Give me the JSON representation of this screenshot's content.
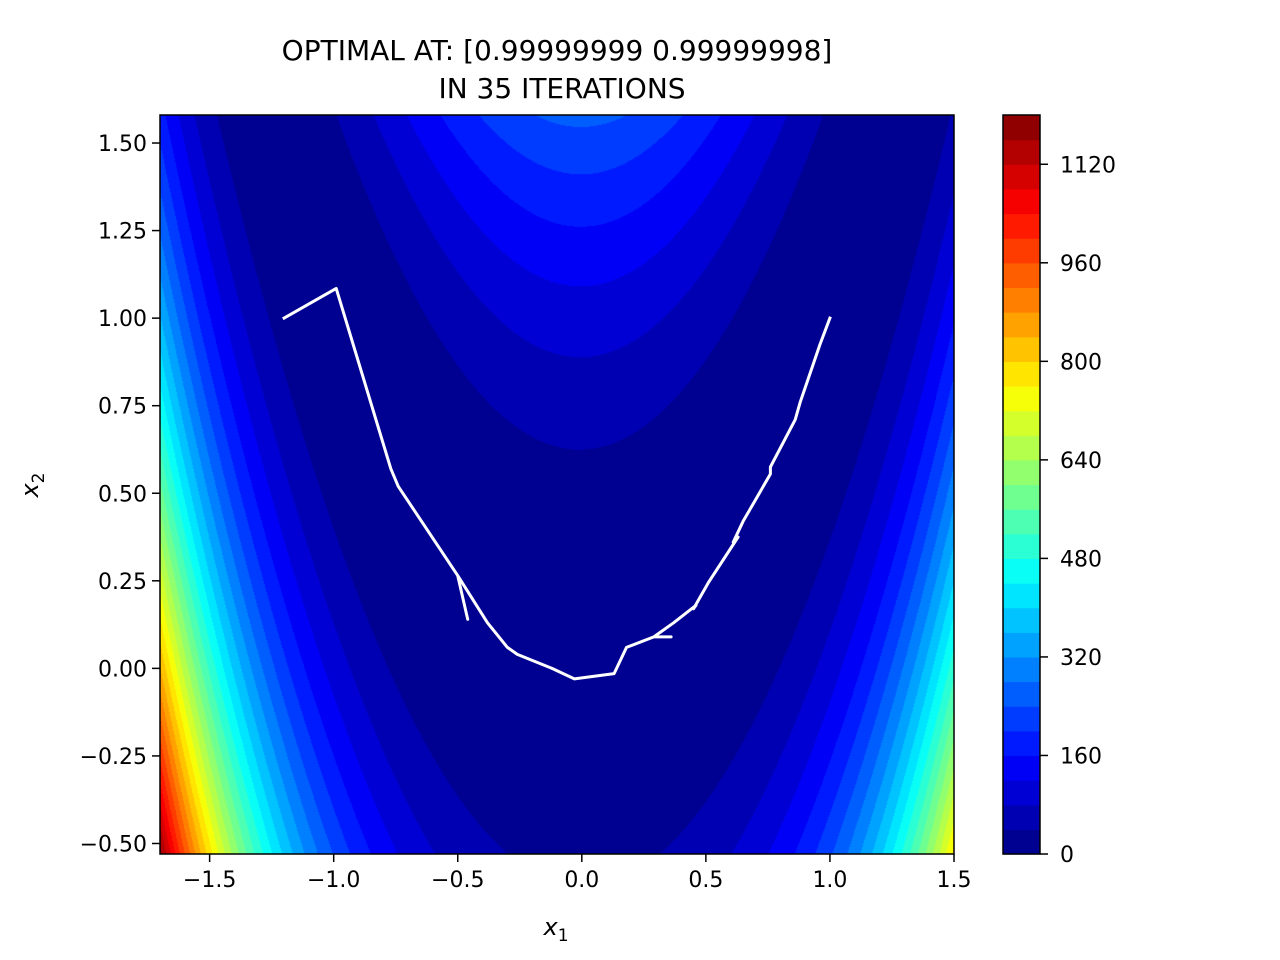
{
  "chart_data": {
    "type": "contour",
    "title": [
      "OPTIMAL AT: [0.99999999 0.99999998]",
      "IN 35 ITERATIONS"
    ],
    "xlabel": {
      "base": "x",
      "sub": "1"
    },
    "ylabel": {
      "base": "x",
      "sub": "2"
    },
    "xlim": [
      -1.7,
      1.5
    ],
    "ylim": [
      -0.53,
      1.58
    ],
    "xticks": [
      -1.5,
      -1.0,
      -0.5,
      0.0,
      0.5,
      1.0,
      1.5
    ],
    "xtick_labels": [
      "−1.5",
      "−1.0",
      "−0.5",
      "0.0",
      "0.5",
      "1.0",
      "1.5"
    ],
    "yticks": [
      -0.5,
      -0.25,
      0.0,
      0.25,
      0.5,
      0.75,
      1.0,
      1.25,
      1.5
    ],
    "ytick_labels": [
      "−0.50",
      "−0.25",
      "0.00",
      "0.25",
      "0.50",
      "0.75",
      "1.00",
      "1.25",
      "1.50"
    ],
    "function": "rosenbrock",
    "colormap": "jet",
    "colorbar": {
      "min": 0,
      "max": 1200,
      "levels": 30,
      "ticks": [
        0,
        160,
        320,
        480,
        640,
        800,
        960,
        1120
      ],
      "tick_labels": [
        "0",
        "160",
        "320",
        "480",
        "640",
        "800",
        "960",
        "1120"
      ]
    },
    "path": {
      "color": "#ffffff",
      "points": [
        [
          -1.2,
          1.0
        ],
        [
          -0.99,
          1.085
        ],
        [
          -0.77,
          0.57
        ],
        [
          -0.74,
          0.52
        ],
        [
          -0.5,
          0.265
        ],
        [
          -0.46,
          0.14
        ],
        [
          -0.5,
          0.265
        ],
        [
          -0.38,
          0.13
        ],
        [
          -0.3,
          0.06
        ],
        [
          -0.26,
          0.04
        ],
        [
          -0.12,
          0.0
        ],
        [
          -0.03,
          -0.03
        ],
        [
          0.13,
          -0.015
        ],
        [
          0.18,
          0.06
        ],
        [
          0.29,
          0.09
        ],
        [
          0.36,
          0.09
        ],
        [
          0.29,
          0.09
        ],
        [
          0.37,
          0.13
        ],
        [
          0.46,
          0.18
        ],
        [
          0.45,
          0.17
        ],
        [
          0.51,
          0.245
        ],
        [
          0.63,
          0.375
        ],
        [
          0.61,
          0.36
        ],
        [
          0.65,
          0.42
        ],
        [
          0.76,
          0.555
        ],
        [
          0.76,
          0.575
        ],
        [
          0.86,
          0.71
        ],
        [
          0.88,
          0.76
        ],
        [
          0.96,
          0.925
        ],
        [
          1.0,
          1.0
        ]
      ]
    }
  }
}
